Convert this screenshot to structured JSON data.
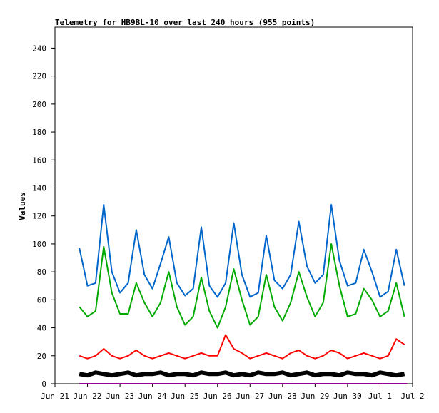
{
  "chart_data": {
    "type": "line",
    "title": "Telemetry for HB9BL-10 over last 240 hours (955 points)",
    "xlabel": "",
    "ylabel": "Values",
    "xlim": [
      "2025-06-21",
      "2025-07-02"
    ],
    "ylim": [
      0,
      255
    ],
    "y_ticks": [
      0,
      20,
      40,
      60,
      80,
      100,
      120,
      140,
      160,
      180,
      200,
      220,
      240
    ],
    "x_ticks": [
      {
        "date": "2025-06-21",
        "label": "Jun 21"
      },
      {
        "date": "2025-06-22",
        "label": "Jun 22"
      },
      {
        "date": "2025-06-23",
        "label": "Jun 23"
      },
      {
        "date": "2025-06-24",
        "label": "Jun 24"
      },
      {
        "date": "2025-06-25",
        "label": "Jun 25"
      },
      {
        "date": "2025-06-26",
        "label": "Jun 26"
      },
      {
        "date": "2025-06-27",
        "label": "Jun 27"
      },
      {
        "date": "2025-06-28",
        "label": "Jun 28"
      },
      {
        "date": "2025-06-29",
        "label": "Jun 29"
      },
      {
        "date": "2025-06-30",
        "label": "Jun 30"
      },
      {
        "date": "2025-07-01",
        "label": "Jul 1"
      },
      {
        "date": "2025-07-02",
        "label": "Jul 2"
      }
    ],
    "grid": false,
    "legend": "none",
    "series": [
      {
        "color": "#0066cc",
        "x": [
          "2025-06-21 18:00",
          "2025-06-22 00:00",
          "2025-06-22 06:00",
          "2025-06-22 12:00",
          "2025-06-22 18:00",
          "2025-06-23 00:00",
          "2025-06-23 06:00",
          "2025-06-23 12:00",
          "2025-06-23 18:00",
          "2025-06-24 00:00",
          "2025-06-24 06:00",
          "2025-06-24 12:00",
          "2025-06-24 18:00",
          "2025-06-25 00:00",
          "2025-06-25 06:00",
          "2025-06-25 12:00",
          "2025-06-25 18:00",
          "2025-06-26 00:00",
          "2025-06-26 06:00",
          "2025-06-26 12:00",
          "2025-06-26 18:00",
          "2025-06-27 00:00",
          "2025-06-27 06:00",
          "2025-06-27 12:00",
          "2025-06-27 18:00",
          "2025-06-28 00:00",
          "2025-06-28 06:00",
          "2025-06-28 12:00",
          "2025-06-28 18:00",
          "2025-06-29 00:00",
          "2025-06-29 06:00",
          "2025-06-29 12:00",
          "2025-06-29 18:00",
          "2025-06-30 00:00",
          "2025-06-30 06:00",
          "2025-06-30 12:00",
          "2025-06-30 18:00",
          "2025-07-01 00:00",
          "2025-07-01 06:00",
          "2025-07-01 12:00",
          "2025-07-01 18:00"
        ],
        "values": [
          97,
          70,
          72,
          128,
          80,
          65,
          72,
          110,
          78,
          68,
          86,
          105,
          72,
          63,
          68,
          112,
          70,
          62,
          72,
          115,
          78,
          62,
          65,
          106,
          74,
          68,
          78,
          116,
          84,
          72,
          78,
          128,
          88,
          70,
          72,
          96,
          80,
          62,
          66,
          96,
          70
        ]
      },
      {
        "color": "#00aa00",
        "x": [
          "2025-06-21 18:00",
          "2025-06-22 00:00",
          "2025-06-22 06:00",
          "2025-06-22 12:00",
          "2025-06-22 18:00",
          "2025-06-23 00:00",
          "2025-06-23 06:00",
          "2025-06-23 12:00",
          "2025-06-23 18:00",
          "2025-06-24 00:00",
          "2025-06-24 06:00",
          "2025-06-24 12:00",
          "2025-06-24 18:00",
          "2025-06-25 00:00",
          "2025-06-25 06:00",
          "2025-06-25 12:00",
          "2025-06-25 18:00",
          "2025-06-26 00:00",
          "2025-06-26 06:00",
          "2025-06-26 12:00",
          "2025-06-26 18:00",
          "2025-06-27 00:00",
          "2025-06-27 06:00",
          "2025-06-27 12:00",
          "2025-06-27 18:00",
          "2025-06-28 00:00",
          "2025-06-28 06:00",
          "2025-06-28 12:00",
          "2025-06-28 18:00",
          "2025-06-29 00:00",
          "2025-06-29 06:00",
          "2025-06-29 12:00",
          "2025-06-29 18:00",
          "2025-06-30 00:00",
          "2025-06-30 06:00",
          "2025-06-30 12:00",
          "2025-06-30 18:00",
          "2025-07-01 00:00",
          "2025-07-01 06:00",
          "2025-07-01 12:00",
          "2025-07-01 18:00"
        ],
        "values": [
          55,
          48,
          52,
          98,
          65,
          50,
          50,
          72,
          58,
          48,
          58,
          80,
          55,
          42,
          48,
          76,
          52,
          40,
          55,
          82,
          60,
          42,
          48,
          78,
          55,
          45,
          58,
          80,
          62,
          48,
          58,
          100,
          70,
          48,
          50,
          68,
          60,
          48,
          52,
          72,
          48
        ]
      },
      {
        "color": "#ff0000",
        "x": [
          "2025-06-21 18:00",
          "2025-06-22 00:00",
          "2025-06-22 06:00",
          "2025-06-22 12:00",
          "2025-06-22 18:00",
          "2025-06-23 00:00",
          "2025-06-23 06:00",
          "2025-06-23 12:00",
          "2025-06-23 18:00",
          "2025-06-24 00:00",
          "2025-06-24 06:00",
          "2025-06-24 12:00",
          "2025-06-24 18:00",
          "2025-06-25 00:00",
          "2025-06-25 06:00",
          "2025-06-25 12:00",
          "2025-06-25 18:00",
          "2025-06-26 00:00",
          "2025-06-26 06:00",
          "2025-06-26 12:00",
          "2025-06-26 18:00",
          "2025-06-27 00:00",
          "2025-06-27 06:00",
          "2025-06-27 12:00",
          "2025-06-27 18:00",
          "2025-06-28 00:00",
          "2025-06-28 06:00",
          "2025-06-28 12:00",
          "2025-06-28 18:00",
          "2025-06-29 00:00",
          "2025-06-29 06:00",
          "2025-06-29 12:00",
          "2025-06-29 18:00",
          "2025-06-30 00:00",
          "2025-06-30 06:00",
          "2025-06-30 12:00",
          "2025-06-30 18:00",
          "2025-07-01 00:00",
          "2025-07-01 06:00",
          "2025-07-01 12:00",
          "2025-07-01 18:00"
        ],
        "values": [
          20,
          18,
          20,
          25,
          20,
          18,
          20,
          24,
          20,
          18,
          20,
          22,
          20,
          18,
          20,
          22,
          20,
          20,
          35,
          25,
          22,
          18,
          20,
          22,
          20,
          18,
          22,
          24,
          20,
          18,
          20,
          24,
          22,
          18,
          20,
          22,
          20,
          18,
          20,
          32,
          28
        ]
      },
      {
        "color": "#000000",
        "x": [
          "2025-06-21 18:00",
          "2025-06-22 00:00",
          "2025-06-22 06:00",
          "2025-06-22 12:00",
          "2025-06-22 18:00",
          "2025-06-23 00:00",
          "2025-06-23 06:00",
          "2025-06-23 12:00",
          "2025-06-23 18:00",
          "2025-06-24 00:00",
          "2025-06-24 06:00",
          "2025-06-24 12:00",
          "2025-06-24 18:00",
          "2025-06-25 00:00",
          "2025-06-25 06:00",
          "2025-06-25 12:00",
          "2025-06-25 18:00",
          "2025-06-26 00:00",
          "2025-06-26 06:00",
          "2025-06-26 12:00",
          "2025-06-26 18:00",
          "2025-06-27 00:00",
          "2025-06-27 06:00",
          "2025-06-27 12:00",
          "2025-06-27 18:00",
          "2025-06-28 00:00",
          "2025-06-28 06:00",
          "2025-06-28 12:00",
          "2025-06-28 18:00",
          "2025-06-29 00:00",
          "2025-06-29 06:00",
          "2025-06-29 12:00",
          "2025-06-29 18:00",
          "2025-06-30 00:00",
          "2025-06-30 06:00",
          "2025-06-30 12:00",
          "2025-06-30 18:00",
          "2025-07-01 00:00",
          "2025-07-01 06:00",
          "2025-07-01 12:00",
          "2025-07-01 18:00"
        ],
        "values": [
          7,
          6,
          8,
          7,
          6,
          7,
          8,
          6,
          7,
          7,
          8,
          6,
          7,
          7,
          6,
          8,
          7,
          7,
          8,
          6,
          7,
          6,
          8,
          7,
          7,
          8,
          6,
          7,
          8,
          6,
          7,
          7,
          6,
          8,
          7,
          7,
          6,
          8,
          7,
          6,
          7
        ]
      },
      {
        "color": "#990099",
        "x": [
          "2025-06-21 18:00",
          "2025-07-01 20:00"
        ],
        "values": [
          0,
          0
        ]
      }
    ]
  }
}
